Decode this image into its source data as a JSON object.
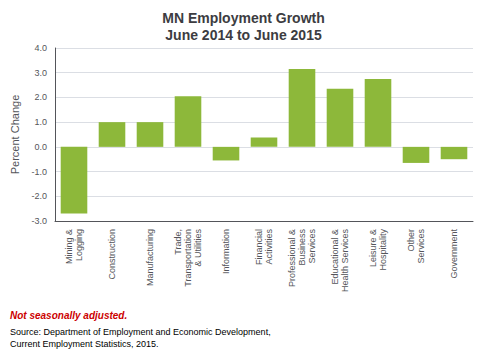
{
  "chart_data": {
    "type": "bar",
    "title": "MN Employment Growth\nJune 2014 to June 2015",
    "ylabel": "Percent Change",
    "categories": [
      "Mining &\nLogging",
      "Construction",
      "Manufacturing",
      "Trade,\nTransportation\n& Utilities",
      "Information",
      "Financial\nActivities",
      "Professional &\nBusiness\nServices",
      "Educational &\nHealth Services",
      "Leisure &\nHospitality",
      "Other\nServices",
      "Government"
    ],
    "values": [
      -2.7,
      1.0,
      1.0,
      2.05,
      -0.55,
      0.38,
      3.15,
      2.35,
      2.75,
      -0.65,
      -0.5
    ],
    "color": "#8db83a",
    "ylim": [
      -3.0,
      4.0
    ],
    "yticks": [
      {
        "value": -3.0,
        "label": "-3.0"
      },
      {
        "value": -2.0,
        "label": "-2.0"
      },
      {
        "value": -1.0,
        "label": "-1.0"
      },
      {
        "value": 0.0,
        "label": "0.0"
      },
      {
        "value": 1.0,
        "label": "1.0"
      },
      {
        "value": 2.0,
        "label": "2.0"
      },
      {
        "value": 3.0,
        "label": "3.0"
      },
      {
        "value": 4.0,
        "label": "4.0"
      }
    ],
    "grid": true,
    "annotations": [
      {
        "text": "Not seasonally adjusted.",
        "color": "#cc0000"
      },
      {
        "text": "Source: Department of Employment and Economic Development,\nCurrent Employment Statistics, 2015."
      }
    ]
  }
}
